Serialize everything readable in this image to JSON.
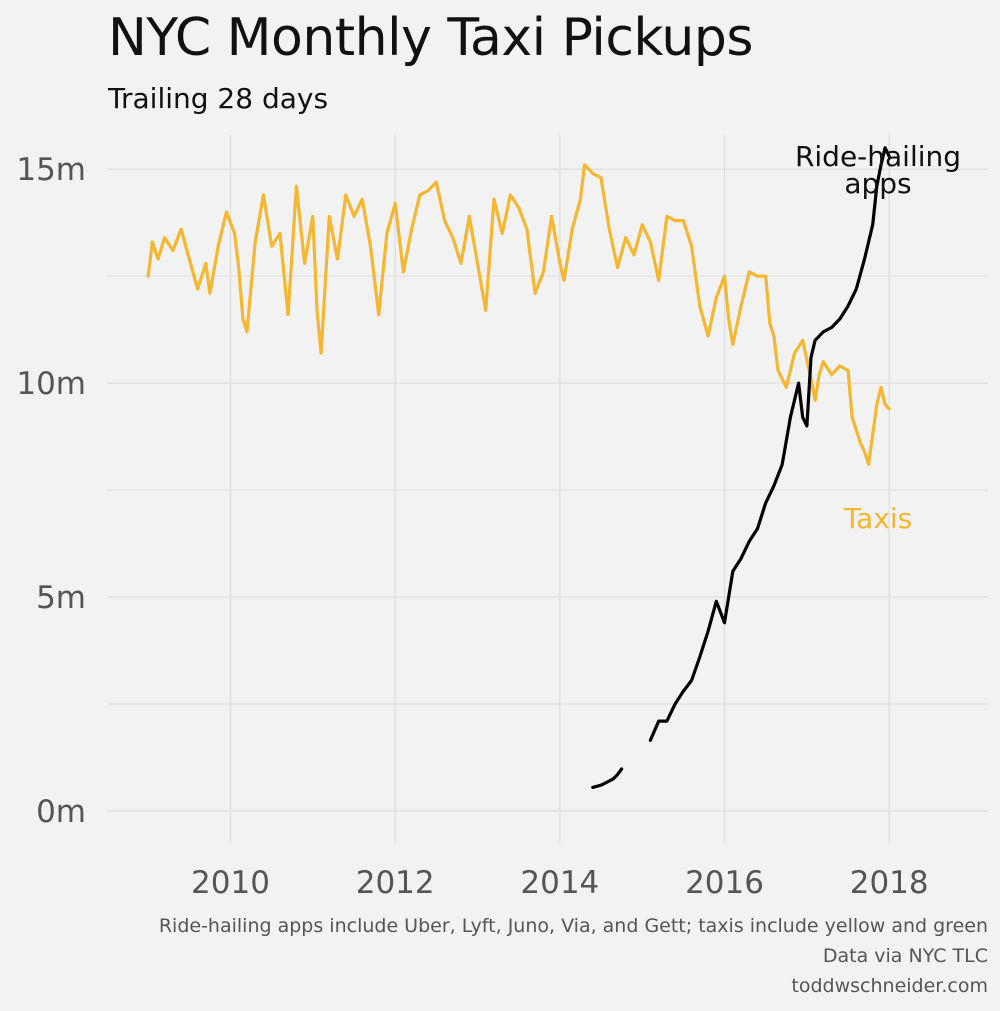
{
  "title": "NYC Monthly Taxi Pickups",
  "subtitle": "Trailing 28 days",
  "captions": [
    "Ride-hailing apps include Uber, Lyft, Juno, Via, and Gett; taxis include yellow and green",
    "Data via NYC TLC",
    "toddwschneider.com"
  ],
  "colors": {
    "taxis": "#f5b731",
    "ride_hailing": "#000000",
    "grid": "#dedede",
    "background": "#f2f2f2"
  },
  "chart_data": {
    "type": "line",
    "xlim": [
      2008.5,
      2019.2
    ],
    "ylim": [
      -0.75,
      15.8
    ],
    "x_ticks": [
      2010,
      2012,
      2014,
      2016,
      2018
    ],
    "x_tick_labels": [
      "2010",
      "2012",
      "2014",
      "2016",
      "2018"
    ],
    "y_ticks": [
      0,
      5,
      10,
      15
    ],
    "y_tick_labels": [
      "0m",
      "5m",
      "10m",
      "15m"
    ],
    "y_minor_ticks": [
      2.5,
      7.5,
      12.5
    ],
    "series": [
      {
        "name": "Taxis",
        "label": "Taxis",
        "color": "#f5b731",
        "segments": [
          [
            [
              2009.0,
              12.5
            ],
            [
              2009.05,
              13.3
            ],
            [
              2009.12,
              12.9
            ],
            [
              2009.2,
              13.4
            ],
            [
              2009.3,
              13.1
            ],
            [
              2009.4,
              13.6
            ],
            [
              2009.5,
              12.9
            ],
            [
              2009.6,
              12.2
            ],
            [
              2009.7,
              12.8
            ],
            [
              2009.75,
              12.1
            ],
            [
              2009.85,
              13.2
            ],
            [
              2009.95,
              14.0
            ],
            [
              2010.05,
              13.5
            ],
            [
              2010.1,
              12.7
            ],
            [
              2010.15,
              11.5
            ],
            [
              2010.2,
              11.2
            ],
            [
              2010.3,
              13.3
            ],
            [
              2010.4,
              14.4
            ],
            [
              2010.5,
              13.2
            ],
            [
              2010.6,
              13.5
            ],
            [
              2010.7,
              11.6
            ],
            [
              2010.8,
              14.6
            ],
            [
              2010.9,
              12.8
            ],
            [
              2011.0,
              13.9
            ],
            [
              2011.05,
              11.7
            ],
            [
              2011.1,
              10.7
            ],
            [
              2011.2,
              13.9
            ],
            [
              2011.3,
              12.9
            ],
            [
              2011.4,
              14.4
            ],
            [
              2011.5,
              13.9
            ],
            [
              2011.6,
              14.3
            ],
            [
              2011.7,
              13.2
            ],
            [
              2011.8,
              11.6
            ],
            [
              2011.9,
              13.5
            ],
            [
              2012.0,
              14.2
            ],
            [
              2012.1,
              12.6
            ],
            [
              2012.2,
              13.6
            ],
            [
              2012.3,
              14.4
            ],
            [
              2012.4,
              14.5
            ],
            [
              2012.5,
              14.7
            ],
            [
              2012.6,
              13.8
            ],
            [
              2012.7,
              13.4
            ],
            [
              2012.8,
              12.8
            ],
            [
              2012.9,
              13.9
            ],
            [
              2013.0,
              12.8
            ],
            [
              2013.1,
              11.7
            ],
            [
              2013.2,
              14.3
            ],
            [
              2013.3,
              13.5
            ],
            [
              2013.4,
              14.4
            ],
            [
              2013.5,
              14.1
            ],
            [
              2013.6,
              13.6
            ],
            [
              2013.7,
              12.1
            ],
            [
              2013.8,
              12.6
            ],
            [
              2013.9,
              13.9
            ],
            [
              2014.0,
              12.8
            ],
            [
              2014.05,
              12.4
            ],
            [
              2014.15,
              13.6
            ],
            [
              2014.25,
              14.3
            ],
            [
              2014.3,
              15.1
            ],
            [
              2014.4,
              14.9
            ],
            [
              2014.5,
              14.8
            ],
            [
              2014.6,
              13.6
            ],
            [
              2014.7,
              12.7
            ],
            [
              2014.8,
              13.4
            ],
            [
              2014.9,
              13.0
            ],
            [
              2015.0,
              13.7
            ],
            [
              2015.1,
              13.3
            ],
            [
              2015.2,
              12.4
            ],
            [
              2015.3,
              13.9
            ],
            [
              2015.4,
              13.8
            ],
            [
              2015.5,
              13.8
            ],
            [
              2015.6,
              13.2
            ],
            [
              2015.7,
              11.8
            ],
            [
              2015.8,
              11.1
            ],
            [
              2015.9,
              12.0
            ],
            [
              2016.0,
              12.5
            ],
            [
              2016.05,
              11.5
            ],
            [
              2016.1,
              10.9
            ],
            [
              2016.2,
              11.8
            ],
            [
              2016.3,
              12.6
            ],
            [
              2016.4,
              12.5
            ],
            [
              2016.5,
              12.5
            ],
            [
              2016.55,
              11.4
            ],
            [
              2016.6,
              11.1
            ],
            [
              2016.65,
              10.3
            ],
            [
              2016.75,
              9.9
            ],
            [
              2016.85,
              10.7
            ],
            [
              2016.95,
              11.0
            ],
            [
              2017.05,
              10.1
            ],
            [
              2017.1,
              9.6
            ],
            [
              2017.15,
              10.2
            ],
            [
              2017.2,
              10.5
            ],
            [
              2017.3,
              10.2
            ],
            [
              2017.4,
              10.4
            ],
            [
              2017.5,
              10.3
            ],
            [
              2017.55,
              9.2
            ],
            [
              2017.6,
              8.9
            ],
            [
              2017.65,
              8.6
            ],
            [
              2017.7,
              8.4
            ],
            [
              2017.75,
              8.1
            ],
            [
              2017.8,
              8.8
            ],
            [
              2017.85,
              9.5
            ],
            [
              2017.9,
              9.9
            ],
            [
              2017.95,
              9.5
            ],
            [
              2018.0,
              9.4
            ]
          ]
        ]
      },
      {
        "name": "Ride-hailing apps",
        "label": "Ride-hailing apps",
        "color": "#000000",
        "segments": [
          [
            [
              2014.4,
              0.55
            ],
            [
              2014.5,
              0.6
            ],
            [
              2014.6,
              0.7
            ],
            [
              2014.65,
              0.75
            ],
            [
              2014.7,
              0.85
            ],
            [
              2014.75,
              0.98
            ]
          ],
          [
            [
              2015.1,
              1.65
            ],
            [
              2015.2,
              2.1
            ],
            [
              2015.3,
              2.1
            ],
            [
              2015.4,
              2.5
            ],
            [
              2015.5,
              2.8
            ],
            [
              2015.6,
              3.05
            ],
            [
              2015.7,
              3.6
            ],
            [
              2015.8,
              4.2
            ],
            [
              2015.9,
              4.9
            ],
            [
              2016.0,
              4.4
            ],
            [
              2016.1,
              5.6
            ],
            [
              2016.2,
              5.9
            ],
            [
              2016.3,
              6.3
            ],
            [
              2016.4,
              6.6
            ],
            [
              2016.5,
              7.2
            ],
            [
              2016.6,
              7.6
            ],
            [
              2016.7,
              8.1
            ],
            [
              2016.8,
              9.2
            ],
            [
              2016.9,
              10.0
            ],
            [
              2016.95,
              9.2
            ],
            [
              2017.0,
              9.0
            ],
            [
              2017.05,
              10.6
            ],
            [
              2017.1,
              11.0
            ],
            [
              2017.2,
              11.2
            ],
            [
              2017.3,
              11.3
            ],
            [
              2017.4,
              11.5
            ],
            [
              2017.5,
              11.8
            ],
            [
              2017.6,
              12.2
            ],
            [
              2017.7,
              12.9
            ],
            [
              2017.8,
              13.7
            ],
            [
              2017.85,
              14.6
            ],
            [
              2017.9,
              15.1
            ],
            [
              2017.95,
              15.5
            ],
            [
              2018.0,
              15.3
            ]
          ]
        ]
      }
    ]
  }
}
